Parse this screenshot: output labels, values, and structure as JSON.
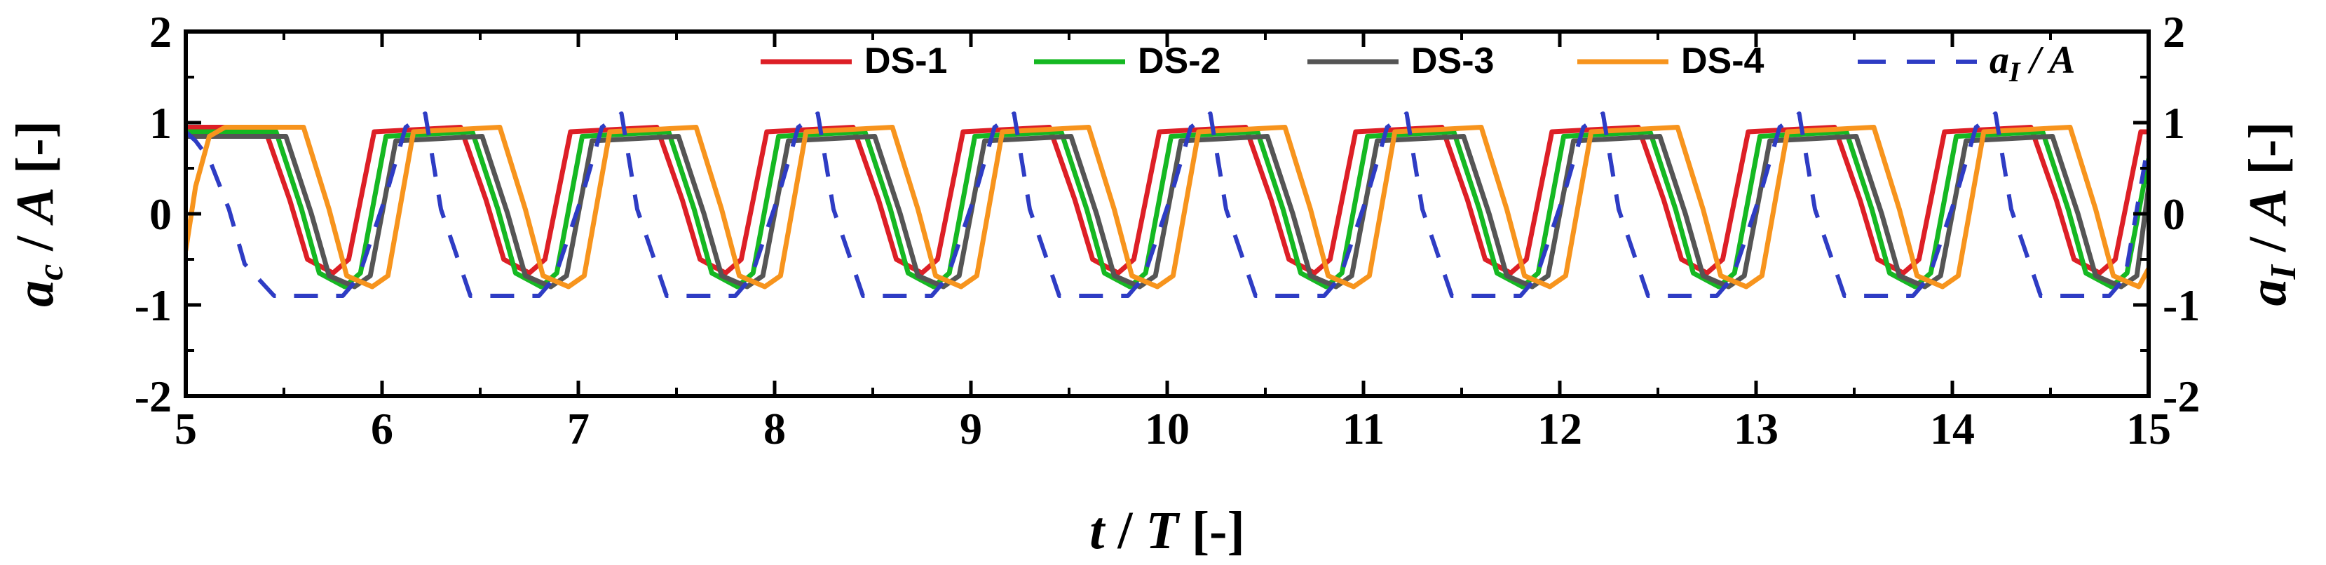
{
  "chart_data": {
    "type": "line",
    "xlabel": {
      "main": "t",
      "sep": " / ",
      "denom": "T",
      "unit": " [-]"
    },
    "ylabel_left": {
      "main": "a",
      "sub": "c",
      "sep": " / ",
      "denom": "A",
      "unit": " [-]"
    },
    "ylabel_right": {
      "main": "a",
      "sub": "I",
      "sep": " / ",
      "denom": "A",
      "unit": " [-]"
    },
    "xlim": [
      5,
      15
    ],
    "ylim": [
      -2,
      2
    ],
    "x_ticks": [
      "5",
      "6",
      "7",
      "8",
      "9",
      "10",
      "11",
      "12",
      "13",
      "14",
      "15"
    ],
    "y_ticks": [
      "2",
      "1",
      "0",
      "-1",
      "-2"
    ],
    "grid": false,
    "legend_position": "top-right",
    "series": [
      {
        "name": "DS-1",
        "color": "#dd1f26",
        "style": "solid",
        "phase_lag": 0.02,
        "high": 0.95,
        "low": -0.65,
        "x": [
          5.0,
          5.4,
          5.53,
          5.62,
          5.75,
          5.83,
          5.96,
          6.4,
          6.53,
          6.62,
          6.75,
          6.83,
          6.96,
          7.4,
          7.53,
          7.62,
          7.75,
          7.83,
          7.96,
          8.4,
          8.53,
          8.62,
          8.75,
          8.83,
          8.96,
          9.4,
          9.53,
          9.62,
          9.75,
          9.83,
          9.96,
          10.4,
          10.53,
          10.62,
          10.75,
          10.83,
          10.96,
          11.4,
          11.53,
          11.62,
          11.75,
          11.83,
          11.96,
          12.4,
          12.53,
          12.62,
          12.75,
          12.83,
          12.96,
          13.4,
          13.53,
          13.62,
          13.75,
          13.83,
          13.96,
          14.4,
          14.53,
          14.62,
          14.75,
          14.83,
          14.96,
          15.0
        ],
        "y": [
          0.95,
          0.95,
          0.15,
          -0.5,
          -0.65,
          -0.5,
          0.9,
          0.95,
          0.15,
          -0.5,
          -0.65,
          -0.5,
          0.9,
          0.95,
          0.15,
          -0.5,
          -0.65,
          -0.5,
          0.9,
          0.95,
          0.15,
          -0.5,
          -0.65,
          -0.5,
          0.9,
          0.95,
          0.15,
          -0.5,
          -0.65,
          -0.5,
          0.9,
          0.95,
          0.15,
          -0.5,
          -0.65,
          -0.5,
          0.9,
          0.95,
          0.15,
          -0.5,
          -0.65,
          -0.5,
          0.9,
          0.95,
          0.15,
          -0.5,
          -0.65,
          -0.5,
          0.9,
          0.95,
          0.15,
          -0.5,
          -0.65,
          -0.5,
          0.9,
          0.95,
          0.15,
          -0.5,
          -0.65,
          -0.5,
          0.9,
          0.9
        ]
      },
      {
        "name": "DS-2",
        "color": "#15b822",
        "style": "solid",
        "phase_lag": 0.08,
        "high": 0.9,
        "low": -0.8,
        "x": [
          5.0,
          5.46,
          5.59,
          5.68,
          5.81,
          5.89,
          6.02,
          6.46,
          6.59,
          6.68,
          6.81,
          6.89,
          7.02,
          7.46,
          7.59,
          7.68,
          7.81,
          7.89,
          8.02,
          8.46,
          8.59,
          8.68,
          8.81,
          8.89,
          9.02,
          9.46,
          9.59,
          9.68,
          9.81,
          9.89,
          10.02,
          10.46,
          10.59,
          10.68,
          10.81,
          10.89,
          11.02,
          11.46,
          11.59,
          11.68,
          11.81,
          11.89,
          12.02,
          12.46,
          12.59,
          12.68,
          12.81,
          12.89,
          13.02,
          13.46,
          13.59,
          13.68,
          13.81,
          13.89,
          14.02,
          14.46,
          14.59,
          14.68,
          14.81,
          14.89,
          15.0
        ],
        "y": [
          0.9,
          0.9,
          0.05,
          -0.65,
          -0.8,
          -0.65,
          0.85,
          0.9,
          0.05,
          -0.65,
          -0.8,
          -0.65,
          0.85,
          0.9,
          0.05,
          -0.65,
          -0.8,
          -0.65,
          0.85,
          0.9,
          0.05,
          -0.65,
          -0.8,
          -0.65,
          0.85,
          0.9,
          0.05,
          -0.65,
          -0.8,
          -0.65,
          0.85,
          0.9,
          0.05,
          -0.65,
          -0.8,
          -0.65,
          0.85,
          0.9,
          0.05,
          -0.65,
          -0.8,
          -0.65,
          0.85,
          0.9,
          0.05,
          -0.65,
          -0.8,
          -0.65,
          0.85,
          0.9,
          0.05,
          -0.65,
          -0.8,
          -0.65,
          0.85,
          0.9,
          0.05,
          -0.65,
          -0.8,
          -0.65,
          0.6
        ]
      },
      {
        "name": "DS-3",
        "color": "#555555",
        "style": "solid",
        "phase_lag": 0.13,
        "high": 0.85,
        "low": -0.8,
        "x": [
          5.0,
          5.51,
          5.64,
          5.73,
          5.86,
          5.94,
          6.07,
          6.51,
          6.64,
          6.73,
          6.86,
          6.94,
          7.07,
          7.51,
          7.64,
          7.73,
          7.86,
          7.94,
          8.07,
          8.51,
          8.64,
          8.73,
          8.86,
          8.94,
          9.07,
          9.51,
          9.64,
          9.73,
          9.86,
          9.94,
          10.07,
          10.51,
          10.64,
          10.73,
          10.86,
          10.94,
          11.07,
          11.51,
          11.64,
          11.73,
          11.86,
          11.94,
          12.07,
          12.51,
          12.64,
          12.73,
          12.86,
          12.94,
          13.07,
          13.51,
          13.64,
          13.73,
          13.86,
          13.94,
          14.07,
          14.51,
          14.64,
          14.73,
          14.86,
          14.94,
          15.0
        ],
        "y": [
          0.85,
          0.85,
          0.0,
          -0.68,
          -0.8,
          -0.68,
          0.8,
          0.85,
          0.0,
          -0.68,
          -0.8,
          -0.68,
          0.8,
          0.85,
          0.0,
          -0.68,
          -0.8,
          -0.68,
          0.8,
          0.85,
          0.0,
          -0.68,
          -0.8,
          -0.68,
          0.8,
          0.85,
          0.0,
          -0.68,
          -0.8,
          -0.68,
          0.8,
          0.85,
          0.0,
          -0.68,
          -0.8,
          -0.68,
          0.8,
          0.85,
          0.0,
          -0.68,
          -0.8,
          -0.68,
          0.8,
          0.85,
          0.0,
          -0.68,
          -0.8,
          -0.68,
          0.8,
          0.85,
          0.0,
          -0.68,
          -0.8,
          -0.68,
          0.8,
          0.85,
          0.0,
          -0.68,
          -0.8,
          -0.68,
          0.3
        ]
      },
      {
        "name": "DS-4",
        "color": "#f7941d",
        "style": "solid",
        "phase_lag": 0.22,
        "high": 0.95,
        "low": -0.8,
        "x": [
          5.0,
          5.05,
          5.12,
          5.2,
          5.6,
          5.73,
          5.82,
          5.95,
          6.03,
          6.16,
          6.6,
          6.73,
          6.82,
          6.95,
          7.03,
          7.16,
          7.6,
          7.73,
          7.82,
          7.95,
          8.03,
          8.16,
          8.6,
          8.73,
          8.82,
          8.95,
          9.03,
          9.16,
          9.6,
          9.73,
          9.82,
          9.95,
          10.03,
          10.16,
          10.6,
          10.73,
          10.82,
          10.95,
          11.03,
          11.16,
          11.6,
          11.73,
          11.82,
          11.95,
          12.03,
          12.16,
          12.6,
          12.73,
          12.82,
          12.95,
          13.03,
          13.16,
          13.6,
          13.73,
          13.82,
          13.95,
          14.03,
          14.16,
          14.6,
          14.73,
          14.82,
          14.95,
          15.0
        ],
        "y": [
          -0.4,
          0.3,
          0.85,
          0.95,
          0.95,
          0.05,
          -0.68,
          -0.8,
          -0.68,
          0.9,
          0.95,
          0.05,
          -0.68,
          -0.8,
          -0.68,
          0.9,
          0.95,
          0.05,
          -0.68,
          -0.8,
          -0.68,
          0.9,
          0.95,
          0.05,
          -0.68,
          -0.8,
          -0.68,
          0.9,
          0.95,
          0.05,
          -0.68,
          -0.8,
          -0.68,
          0.9,
          0.95,
          0.05,
          -0.68,
          -0.8,
          -0.68,
          0.9,
          0.95,
          0.05,
          -0.68,
          -0.8,
          -0.68,
          0.9,
          0.95,
          0.05,
          -0.68,
          -0.8,
          -0.68,
          0.9,
          0.95,
          0.05,
          -0.68,
          -0.8,
          -0.68,
          0.9,
          0.95,
          0.05,
          -0.68,
          -0.8,
          -0.6
        ]
      },
      {
        "name": "a_I / A",
        "color": "#2e3cc4",
        "style": "dashed",
        "phase_lag": -0.1,
        "high": 1.1,
        "low": -0.9,
        "x": [
          5.0,
          5.05,
          5.12,
          5.22,
          5.3,
          5.45,
          5.8,
          5.88,
          6.02,
          6.12,
          6.22,
          6.3,
          6.45,
          6.8,
          6.88,
          7.02,
          7.12,
          7.22,
          7.3,
          7.45,
          7.8,
          7.88,
          8.02,
          8.12,
          8.22,
          8.3,
          8.45,
          8.8,
          8.88,
          9.02,
          9.12,
          9.22,
          9.3,
          9.45,
          9.8,
          9.88,
          10.02,
          10.12,
          10.22,
          10.3,
          10.45,
          10.8,
          10.88,
          11.02,
          11.12,
          11.22,
          11.3,
          11.45,
          11.8,
          11.88,
          12.02,
          12.12,
          12.22,
          12.3,
          12.45,
          12.8,
          12.88,
          13.02,
          13.12,
          13.22,
          13.3,
          13.45,
          13.8,
          13.88,
          14.02,
          14.12,
          14.22,
          14.3,
          14.45,
          14.8,
          14.88,
          15.0
        ],
        "y": [
          0.9,
          0.8,
          0.6,
          0.05,
          -0.55,
          -0.9,
          -0.9,
          -0.7,
          0.2,
          0.95,
          1.1,
          0.05,
          -0.9,
          -0.9,
          -0.7,
          0.2,
          0.95,
          1.1,
          0.05,
          -0.9,
          -0.9,
          -0.7,
          0.2,
          0.95,
          1.1,
          0.05,
          -0.9,
          -0.9,
          -0.7,
          0.2,
          0.95,
          1.1,
          0.05,
          -0.9,
          -0.9,
          -0.7,
          0.2,
          0.95,
          1.1,
          0.05,
          -0.9,
          -0.9,
          -0.7,
          0.2,
          0.95,
          1.1,
          0.05,
          -0.9,
          -0.9,
          -0.7,
          0.2,
          0.95,
          1.1,
          0.05,
          -0.9,
          -0.9,
          -0.7,
          0.2,
          0.95,
          1.1,
          0.05,
          -0.9,
          -0.9,
          -0.7,
          0.2,
          0.95,
          1.1,
          0.05,
          -0.9,
          -0.9,
          -0.7,
          0.8
        ]
      }
    ],
    "legend": [
      {
        "label": "DS-1",
        "color": "#dd1f26",
        "style": "solid"
      },
      {
        "label": "DS-2",
        "color": "#15b822",
        "style": "solid"
      },
      {
        "label": "DS-3",
        "color": "#555555",
        "style": "solid"
      },
      {
        "label": "DS-4",
        "color": "#f7941d",
        "style": "solid"
      },
      {
        "label_main": "a",
        "label_sub": "I",
        "label_rest": " / A",
        "color": "#2e3cc4",
        "style": "dashed"
      }
    ]
  }
}
